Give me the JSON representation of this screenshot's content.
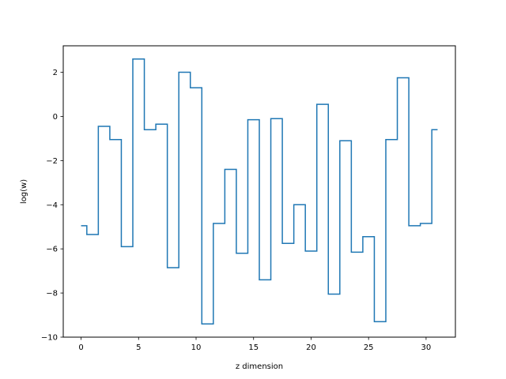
{
  "chart_data": {
    "type": "line",
    "drawstyle": "steps-mid",
    "title": "",
    "xlabel": "z dimension",
    "ylabel": "log(w)",
    "xlim": [
      -1.55,
      32.55
    ],
    "ylim": [
      -10,
      3.2
    ],
    "xticks": [
      0,
      5,
      10,
      15,
      20,
      25,
      30
    ],
    "yticks": [
      -10,
      -8,
      -6,
      -4,
      -2,
      0,
      2
    ],
    "grid": false,
    "legend": null,
    "line_color": "#1f77b4",
    "series": [
      {
        "x": [
          0,
          1,
          2,
          3,
          4,
          5,
          6,
          7,
          8,
          9,
          10,
          11,
          12,
          13,
          14,
          15,
          16,
          17,
          18,
          19,
          20,
          21,
          22,
          23,
          24,
          25,
          26,
          27,
          28,
          29,
          30,
          31
        ],
        "values": [
          -4.95,
          -5.35,
          -0.45,
          -1.05,
          -5.9,
          2.6,
          -0.6,
          -0.35,
          -6.85,
          2.0,
          1.3,
          -9.4,
          -4.85,
          -2.4,
          -6.2,
          -0.15,
          -7.4,
          -0.1,
          -5.75,
          -4.0,
          -6.1,
          0.55,
          -8.05,
          -1.1,
          -6.15,
          -5.45,
          -9.3,
          -1.05,
          1.75,
          -4.95,
          -4.85,
          -0.6
        ]
      }
    ]
  }
}
